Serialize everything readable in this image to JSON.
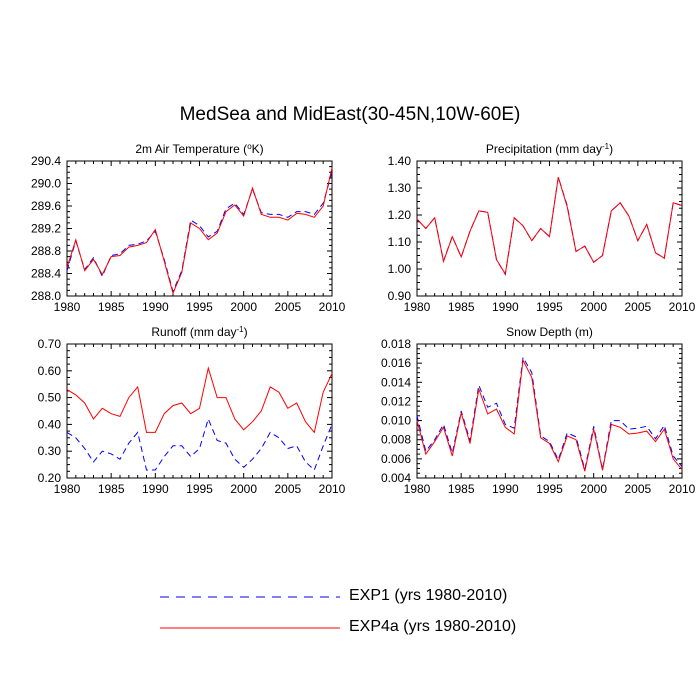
{
  "title": "MedSea and MidEast(30-45N,10W-60E)",
  "legend": {
    "placement": "bottom-center",
    "items": [
      {
        "label": "EXP1 (yrs 1980-2010)",
        "color": "#0000ff",
        "style": "dashed"
      },
      {
        "label": "EXP4a (yrs 1980-2010)",
        "color": "#ff0000",
        "style": "solid"
      }
    ]
  },
  "chart_data": [
    {
      "type": "line",
      "title": "2m Air Temperature (",
      "title_sup": "o",
      "title_end": "K)",
      "x": [
        1980,
        1981,
        1982,
        1983,
        1984,
        1985,
        1986,
        1987,
        1988,
        1989,
        1990,
        1991,
        1992,
        1993,
        1994,
        1995,
        1996,
        1997,
        1998,
        1999,
        2000,
        2001,
        2002,
        2003,
        2004,
        2005,
        2006,
        2007,
        2008,
        2009,
        2010
      ],
      "xlim": [
        1980,
        2010
      ],
      "xticks": [
        1980,
        1985,
        1990,
        1995,
        2000,
        2005,
        2010
      ],
      "ylim": [
        288.0,
        290.4
      ],
      "yticks": [
        "288.0",
        "288.4",
        "288.8",
        "289.2",
        "289.6",
        "290.0",
        "290.4"
      ],
      "yticks_val": [
        288.0,
        288.4,
        288.8,
        289.2,
        289.6,
        290.0,
        290.4
      ],
      "series": [
        {
          "values": [
            288.45,
            288.98,
            288.47,
            288.68,
            288.35,
            288.72,
            288.75,
            288.9,
            288.92,
            288.98,
            289.15,
            288.65,
            288.08,
            288.45,
            289.35,
            289.25,
            289.05,
            289.15,
            289.55,
            289.65,
            289.45,
            289.9,
            289.48,
            289.45,
            289.45,
            289.4,
            289.5,
            289.5,
            289.45,
            289.65,
            290.2
          ]
        },
        {
          "values": [
            288.5,
            289.0,
            288.45,
            288.65,
            288.38,
            288.7,
            288.72,
            288.87,
            288.9,
            288.95,
            289.18,
            288.62,
            288.05,
            288.42,
            289.3,
            289.2,
            289.0,
            289.12,
            289.5,
            289.62,
            289.42,
            289.92,
            289.45,
            289.4,
            289.4,
            289.35,
            289.47,
            289.45,
            289.4,
            289.6,
            290.28
          ]
        }
      ]
    },
    {
      "type": "line",
      "title": "Precipitation (mm day",
      "title_sup": "-1",
      "title_end": ")",
      "x": [
        1980,
        1981,
        1982,
        1983,
        1984,
        1985,
        1986,
        1987,
        1988,
        1989,
        1990,
        1991,
        1992,
        1993,
        1994,
        1995,
        1996,
        1997,
        1998,
        1999,
        2000,
        2001,
        2002,
        2003,
        2004,
        2005,
        2006,
        2007,
        2008,
        2009,
        2010
      ],
      "xlim": [
        1980,
        2010
      ],
      "xticks": [
        1980,
        1985,
        1990,
        1995,
        2000,
        2005,
        2010
      ],
      "ylim": [
        0.9,
        1.4
      ],
      "yticks": [
        "0.90",
        "1.00",
        "1.10",
        "1.20",
        "1.30",
        "1.40"
      ],
      "yticks_val": [
        0.9,
        1.0,
        1.1,
        1.2,
        1.3,
        1.4
      ],
      "series": [
        {
          "values": [
            1.185,
            1.15,
            1.19,
            1.03,
            1.12,
            1.045,
            1.14,
            1.215,
            1.21,
            1.035,
            0.98,
            1.19,
            1.16,
            1.105,
            1.15,
            1.12,
            1.34,
            1.235,
            1.065,
            1.085,
            1.025,
            1.05,
            1.215,
            1.245,
            1.195,
            1.105,
            1.165,
            1.06,
            1.04,
            1.245,
            1.235
          ]
        },
        {
          "values": [
            1.185,
            1.15,
            1.19,
            1.028,
            1.12,
            1.045,
            1.14,
            1.215,
            1.21,
            1.035,
            0.982,
            1.19,
            1.16,
            1.105,
            1.15,
            1.12,
            1.34,
            1.23,
            1.065,
            1.085,
            1.025,
            1.05,
            1.215,
            1.245,
            1.195,
            1.105,
            1.165,
            1.06,
            1.04,
            1.245,
            1.235
          ]
        }
      ]
    },
    {
      "type": "line",
      "title": "Runoff (mm day",
      "title_sup": "-1",
      "title_end": ")",
      "x": [
        1980,
        1981,
        1982,
        1983,
        1984,
        1985,
        1986,
        1987,
        1988,
        1989,
        1990,
        1991,
        1992,
        1993,
        1994,
        1995,
        1996,
        1997,
        1998,
        1999,
        2000,
        2001,
        2002,
        2003,
        2004,
        2005,
        2006,
        2007,
        2008,
        2009,
        2010
      ],
      "xlim": [
        1980,
        2010
      ],
      "xticks": [
        1980,
        1985,
        1990,
        1995,
        2000,
        2005,
        2010
      ],
      "ylim": [
        0.2,
        0.7
      ],
      "yticks": [
        "0.20",
        "0.30",
        "0.40",
        "0.50",
        "0.60",
        "0.70"
      ],
      "yticks_val": [
        0.2,
        0.3,
        0.4,
        0.5,
        0.6,
        0.7
      ],
      "series": [
        {
          "values": [
            0.37,
            0.35,
            0.31,
            0.26,
            0.3,
            0.29,
            0.27,
            0.33,
            0.37,
            0.23,
            0.23,
            0.28,
            0.32,
            0.32,
            0.28,
            0.31,
            0.42,
            0.34,
            0.33,
            0.27,
            0.24,
            0.27,
            0.31,
            0.37,
            0.35,
            0.31,
            0.32,
            0.26,
            0.23,
            0.32,
            0.4
          ]
        },
        {
          "values": [
            0.53,
            0.51,
            0.48,
            0.42,
            0.46,
            0.44,
            0.43,
            0.5,
            0.54,
            0.37,
            0.37,
            0.44,
            0.47,
            0.48,
            0.44,
            0.46,
            0.61,
            0.5,
            0.5,
            0.42,
            0.38,
            0.41,
            0.45,
            0.54,
            0.52,
            0.46,
            0.48,
            0.41,
            0.37,
            0.52,
            0.59
          ]
        }
      ]
    },
    {
      "type": "line",
      "title": "Snow Depth (m)",
      "title_sup": "",
      "title_end": "",
      "x": [
        1980,
        1981,
        1982,
        1983,
        1984,
        1985,
        1986,
        1987,
        1988,
        1989,
        1990,
        1991,
        1992,
        1993,
        1994,
        1995,
        1996,
        1997,
        1998,
        1999,
        2000,
        2001,
        2002,
        2003,
        2004,
        2005,
        2006,
        2007,
        2008,
        2009,
        2010
      ],
      "xlim": [
        1980,
        2010
      ],
      "xticks": [
        1980,
        1985,
        1990,
        1995,
        2000,
        2005,
        2010
      ],
      "ylim": [
        0.004,
        0.018
      ],
      "yticks": [
        "0.004",
        "0.006",
        "0.008",
        "0.010",
        "0.012",
        "0.014",
        "0.016",
        "0.018"
      ],
      "yticks_val": [
        0.004,
        0.006,
        0.008,
        0.01,
        0.012,
        0.014,
        0.016,
        0.018
      ],
      "series": [
        {
          "values": [
            0.0105,
            0.0068,
            0.008,
            0.0096,
            0.0066,
            0.011,
            0.0079,
            0.0137,
            0.0114,
            0.0118,
            0.0096,
            0.0092,
            0.0166,
            0.015,
            0.0084,
            0.0078,
            0.0059,
            0.0087,
            0.0083,
            0.0049,
            0.0094,
            0.0049,
            0.01,
            0.01,
            0.0091,
            0.0092,
            0.0094,
            0.0081,
            0.0095,
            0.0063,
            0.0052
          ]
        },
        {
          "values": [
            0.01,
            0.0065,
            0.0078,
            0.0093,
            0.0063,
            0.0108,
            0.0076,
            0.0133,
            0.0107,
            0.0112,
            0.0093,
            0.0086,
            0.0163,
            0.0145,
            0.0082,
            0.0076,
            0.0057,
            0.0084,
            0.008,
            0.0047,
            0.0091,
            0.0048,
            0.0096,
            0.0093,
            0.0086,
            0.0087,
            0.0089,
            0.0078,
            0.0091,
            0.006,
            0.0049
          ]
        }
      ]
    }
  ]
}
